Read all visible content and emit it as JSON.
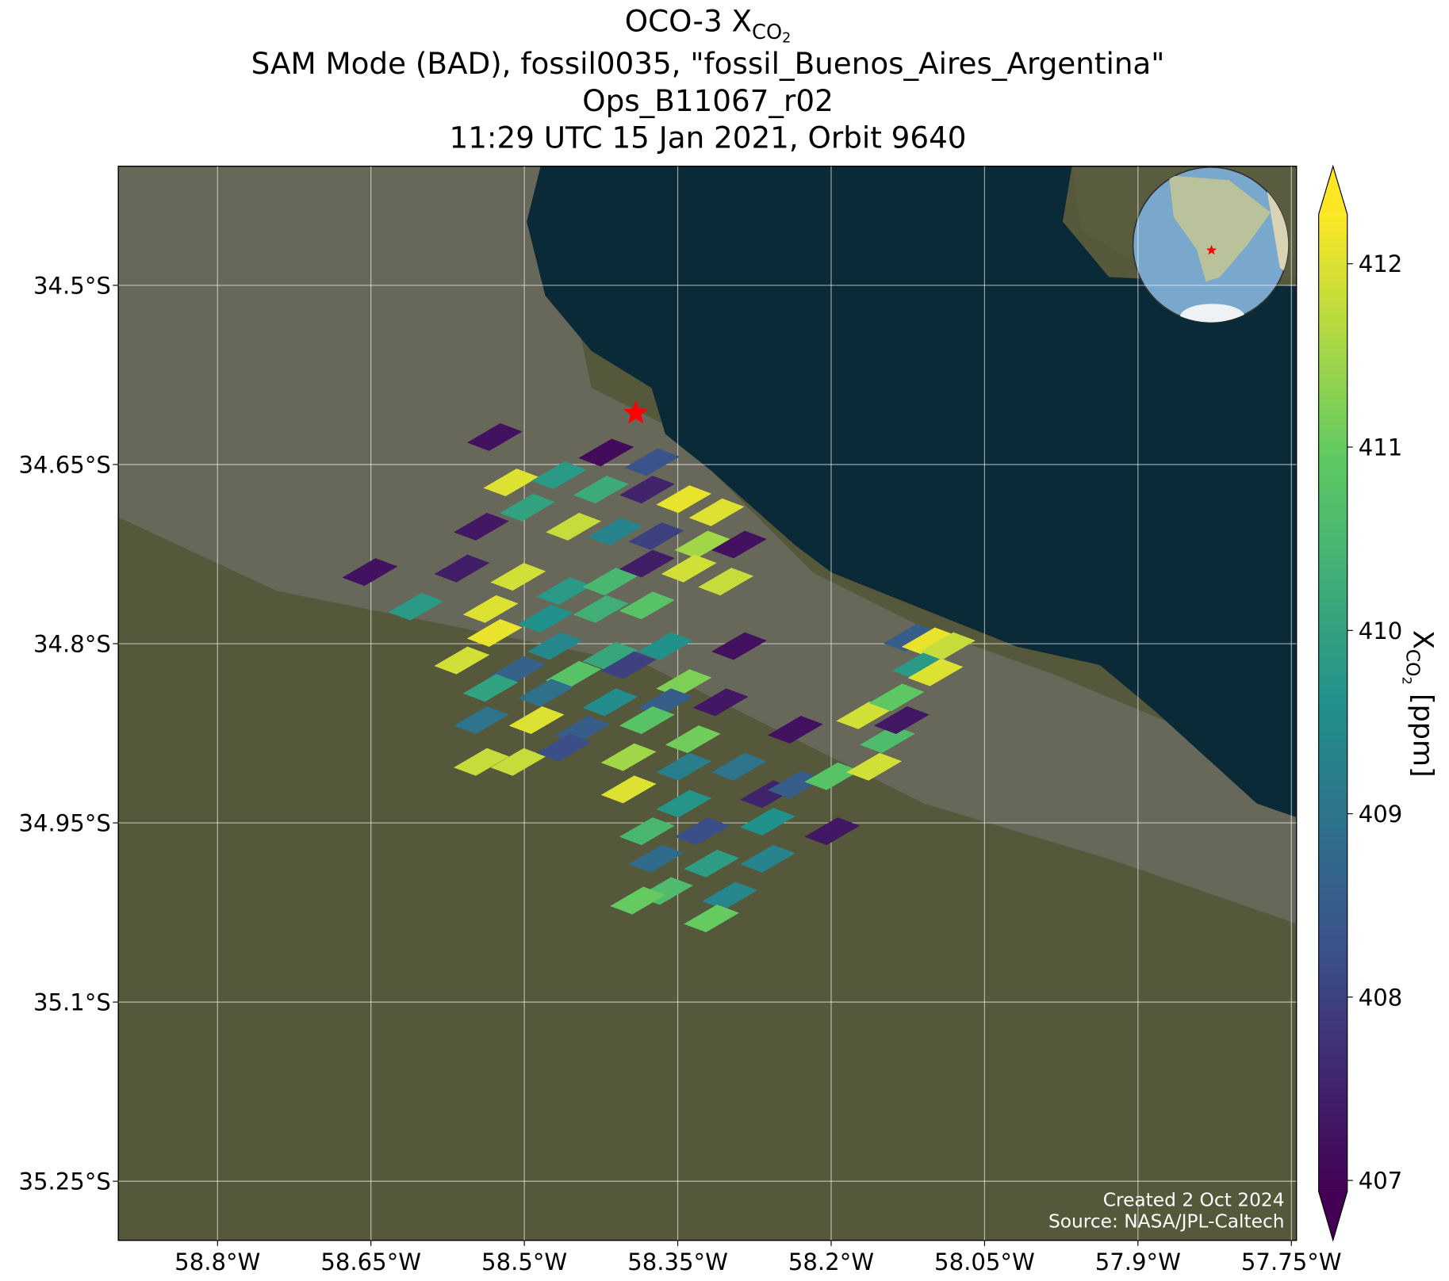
{
  "chart_data": {
    "type": "map",
    "title": {
      "text": "OCO-3 X",
      "sub": "CO",
      "subsub": "2"
    },
    "subtitles": [
      "SAM Mode (BAD), fossil0035, \"fossil_Buenos_Aires_Argentina\"",
      "Ops_B11067_r02",
      "11:29 UTC 15 Jan 2021, Orbit 9640"
    ],
    "xlim": [
      -58.897,
      -57.745
    ],
    "ylim": [
      -35.2995,
      -34.4003
    ],
    "xticks": [
      {
        "value": -58.8,
        "label": "58.8°W"
      },
      {
        "value": -58.65,
        "label": "58.65°W"
      },
      {
        "value": -58.5,
        "label": "58.5°W"
      },
      {
        "value": -58.35,
        "label": "58.35°W"
      },
      {
        "value": -58.2,
        "label": "58.2°W"
      },
      {
        "value": -58.05,
        "label": "58.05°W"
      },
      {
        "value": -57.9,
        "label": "57.9°W"
      },
      {
        "value": -57.75,
        "label": "57.75°W"
      }
    ],
    "yticks": [
      {
        "value": -34.5,
        "label": "34.5°S"
      },
      {
        "value": -34.65,
        "label": "34.65°S"
      },
      {
        "value": -34.8,
        "label": "34.8°S"
      },
      {
        "value": -34.95,
        "label": "34.95°S"
      },
      {
        "value": -35.1,
        "label": "35.1°S"
      },
      {
        "value": -35.25,
        "label": "35.25°S"
      }
    ],
    "grid": true,
    "colormap": "viridis",
    "colorbar_lim": [
      406.94,
      412.27
    ],
    "colorbar_ticks": [
      407,
      408,
      409,
      410,
      411,
      412
    ],
    "colorbar_label": {
      "text": "X",
      "sub": "CO",
      "subsub": "2",
      "unit": " [ppm]"
    },
    "target": {
      "lon": -58.391,
      "lat": -34.607,
      "color": "#ff0000"
    },
    "soundings": {
      "lon": [
        -58.529,
        -58.42,
        -58.375,
        -58.513,
        -58.466,
        -58.425,
        -58.38,
        -58.344,
        -58.312,
        -58.542,
        -58.497,
        -58.452,
        -58.411,
        -58.371,
        -58.326,
        -58.29,
        -58.651,
        -58.561,
        -58.506,
        -58.461,
        -58.416,
        -58.38,
        -58.339,
        -58.303,
        -58.606,
        -58.533,
        -58.479,
        -58.425,
        -58.38,
        -58.529,
        -58.47,
        -58.416,
        -58.362,
        -58.29,
        -58.561,
        -58.506,
        -58.452,
        -58.398,
        -58.344,
        -58.533,
        -58.479,
        -58.416,
        -58.362,
        -58.308,
        -58.542,
        -58.488,
        -58.443,
        -58.38,
        -58.335,
        -58.542,
        -58.506,
        -58.461,
        -58.398,
        -58.344,
        -58.29,
        -58.235,
        -58.398,
        -58.344,
        -58.262,
        -58.235,
        -58.199,
        -58.158,
        -58.145,
        -58.168,
        -58.131,
        -58.136,
        -58.122,
        -58.104,
        -58.113,
        -58.098,
        -58.086,
        -58.38,
        -58.326,
        -58.262,
        -58.199,
        -58.371,
        -58.317,
        -58.262,
        -58.362,
        -58.299,
        -58.389,
        -58.317
      ],
      "lat": [
        -34.627,
        -34.64,
        -34.648,
        -34.665,
        -34.659,
        -34.671,
        -34.671,
        -34.679,
        -34.69,
        -34.702,
        -34.686,
        -34.702,
        -34.706,
        -34.71,
        -34.717,
        -34.717,
        -34.74,
        -34.737,
        -34.744,
        -34.756,
        -34.748,
        -34.733,
        -34.737,
        -34.748,
        -34.769,
        -34.771,
        -34.779,
        -34.771,
        -34.768,
        -34.791,
        -34.802,
        -34.81,
        -34.802,
        -34.802,
        -34.814,
        -34.822,
        -34.826,
        -34.818,
        -34.833,
        -34.837,
        -34.841,
        -34.849,
        -34.849,
        -34.849,
        -34.864,
        -34.864,
        -34.872,
        -34.864,
        -34.88,
        -34.899,
        -34.899,
        -34.887,
        -34.895,
        -34.903,
        -34.903,
        -34.872,
        -34.922,
        -34.934,
        -34.926,
        -34.918,
        -34.911,
        -34.903,
        -34.88,
        -34.86,
        -34.864,
        -34.845,
        -34.795,
        -34.798,
        -34.818,
        -34.824,
        -34.802,
        -34.957,
        -34.957,
        -34.949,
        -34.957,
        -34.98,
        -34.984,
        -34.98,
        -35.007,
        -35.011,
        -35.015,
        -35.03
      ],
      "xco2": [
        407.2,
        407.1,
        408.3,
        412.0,
        409.8,
        410.2,
        407.5,
        412.1,
        412.0,
        407.3,
        410.0,
        411.8,
        409.3,
        408.0,
        411.5,
        407.2,
        407.2,
        407.4,
        411.9,
        409.8,
        410.5,
        407.4,
        411.9,
        411.8,
        409.8,
        412.0,
        409.6,
        410.3,
        410.8,
        412.1,
        409.4,
        410.1,
        409.6,
        407.2,
        411.9,
        408.6,
        410.8,
        408.0,
        411.2,
        410.0,
        408.9,
        409.5,
        408.5,
        407.3,
        409.0,
        412.0,
        408.5,
        410.8,
        411.1,
        411.8,
        411.8,
        408.2,
        411.5,
        409.2,
        409.0,
        407.2,
        412.0,
        409.7,
        407.5,
        408.5,
        410.8,
        411.9,
        410.6,
        411.9,
        407.3,
        410.9,
        408.5,
        412.1,
        409.8,
        412.0,
        411.8,
        410.5,
        408.2,
        409.6,
        407.3,
        408.8,
        409.9,
        409.3,
        410.6,
        409.4,
        411.0,
        411.0
      ]
    },
    "footer": [
      "Created 2 Oct 2024",
      "Source: NASA/JPL-Caltech"
    ]
  }
}
